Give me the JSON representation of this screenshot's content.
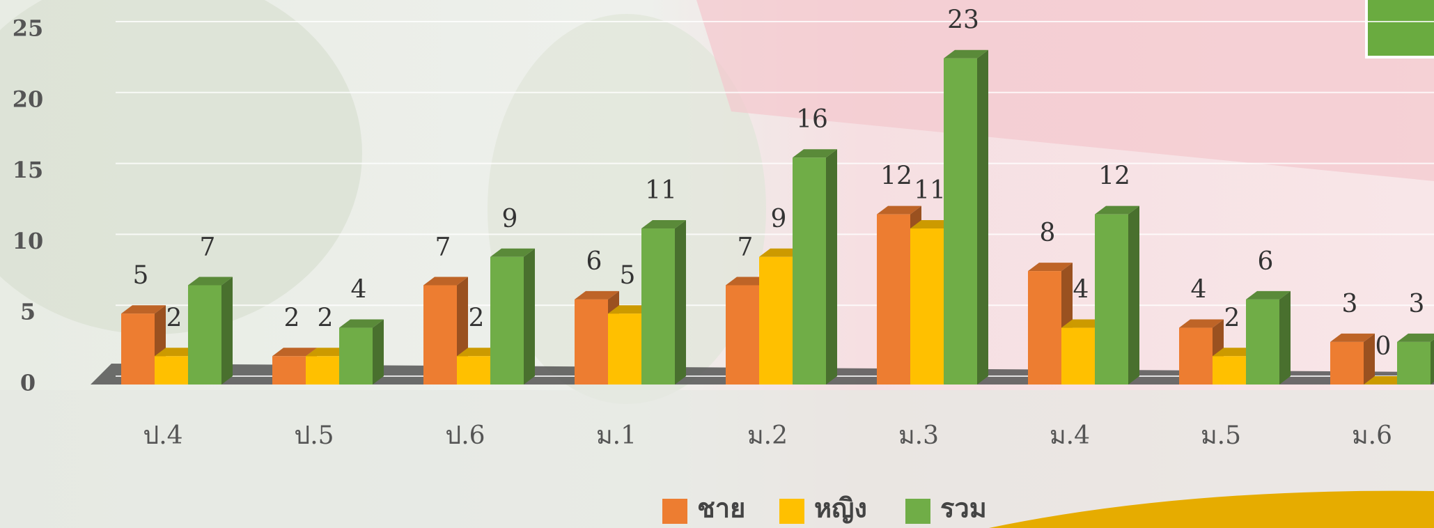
{
  "chart_data": {
    "type": "bar3d",
    "categories": [
      "ป.4",
      "ป.5",
      "ป.6",
      "ม.1",
      "ม.2",
      "ม.3",
      "ม.4",
      "ม.5",
      "ม.6"
    ],
    "series": [
      {
        "name": "ชาย",
        "color": "#ed7d31",
        "values": [
          5,
          2,
          7,
          6,
          7,
          12,
          8,
          4,
          3
        ]
      },
      {
        "name": "หญิง",
        "color": "#ffc000",
        "values": [
          2,
          2,
          2,
          5,
          9,
          11,
          4,
          2,
          0
        ]
      },
      {
        "name": "รวม",
        "color": "#70ad47",
        "values": [
          7,
          4,
          9,
          11,
          16,
          23,
          12,
          6,
          3
        ]
      }
    ],
    "ylim": [
      0,
      25
    ],
    "yticks": [
      0,
      5,
      10,
      15,
      20,
      25
    ],
    "grid": true,
    "legend": "bottom"
  }
}
